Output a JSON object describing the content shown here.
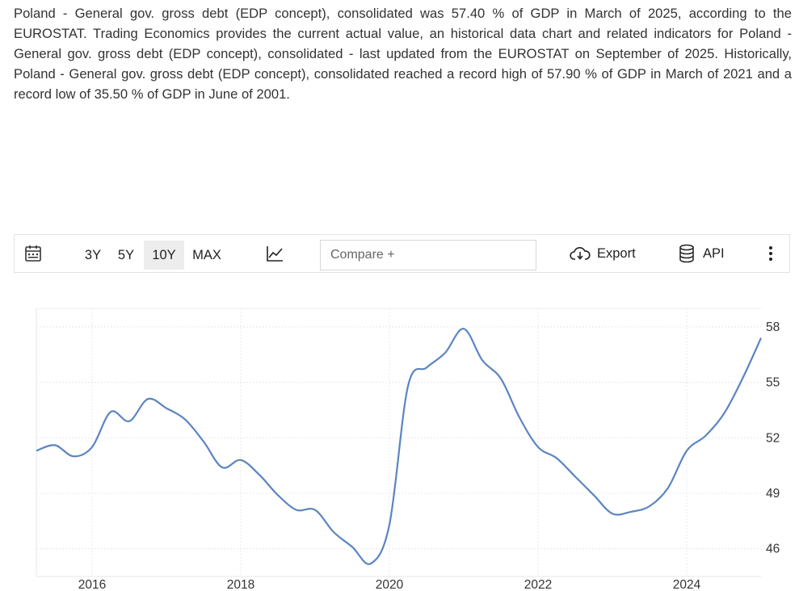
{
  "description": "Poland - General gov. gross debt (EDP concept), consolidated was 57.40 % of GDP in March of 2025, according to the EUROSTAT. Trading Economics provides the current actual value, an historical data chart and related indicators for Poland - General gov. gross debt (EDP concept), consolidated - last updated from the EUROSTAT on September of 2025. Historically, Poland - General gov. gross debt (EDP concept), consolidated reached a record high of 57.90 % of GDP in March of 2021 and a record low of 35.50 % of GDP in June of 2001.",
  "toolbar": {
    "calendar_icon": "calendar-icon",
    "ranges": [
      {
        "label": "3Y",
        "active": false
      },
      {
        "label": "5Y",
        "active": false
      },
      {
        "label": "10Y",
        "active": true
      },
      {
        "label": "MAX",
        "active": false
      }
    ],
    "chart_type_icon": "line-chart-icon",
    "compare_placeholder": "Compare +",
    "export_label": "Export",
    "export_icon": "cloud-download-icon",
    "api_label": "API",
    "api_icon": "database-icon",
    "more_icon": "vertical-dots-icon"
  },
  "colors": {
    "line": "#5b85c0",
    "grid": "#e6e6e6",
    "active_range_bg": "#ededed"
  },
  "chart_data": {
    "type": "line",
    "title": "",
    "xlabel": "",
    "ylabel": "",
    "xlim": [
      2015.25,
      2025.0
    ],
    "ylim": [
      44.5,
      59.0
    ],
    "x_ticks": [
      2016,
      2018,
      2020,
      2022,
      2024
    ],
    "x_tick_labels": [
      "2016",
      "2018",
      "2020",
      "2022",
      "2024"
    ],
    "y_ticks": [
      46,
      49,
      52,
      55,
      58
    ],
    "y_tick_labels": [
      "46",
      "49",
      "52",
      "55",
      "58"
    ],
    "y_axis_side": "right",
    "grid": true,
    "legend": "none",
    "series": [
      {
        "values": [
          {
            "x": 2015.25,
            "y": 51.3
          },
          {
            "x": 2015.5,
            "y": 51.6
          },
          {
            "x": 2015.75,
            "y": 51.0
          },
          {
            "x": 2016.0,
            "y": 51.5
          },
          {
            "x": 2016.25,
            "y": 53.4
          },
          {
            "x": 2016.5,
            "y": 52.9
          },
          {
            "x": 2016.75,
            "y": 54.1
          },
          {
            "x": 2017.0,
            "y": 53.6
          },
          {
            "x": 2017.25,
            "y": 53.0
          },
          {
            "x": 2017.5,
            "y": 51.8
          },
          {
            "x": 2017.75,
            "y": 50.4
          },
          {
            "x": 2018.0,
            "y": 50.8
          },
          {
            "x": 2018.25,
            "y": 50.0
          },
          {
            "x": 2018.5,
            "y": 48.9
          },
          {
            "x": 2018.75,
            "y": 48.1
          },
          {
            "x": 2019.0,
            "y": 48.1
          },
          {
            "x": 2019.25,
            "y": 46.9
          },
          {
            "x": 2019.5,
            "y": 46.1
          },
          {
            "x": 2019.75,
            "y": 45.2
          },
          {
            "x": 2020.0,
            "y": 47.3
          },
          {
            "x": 2020.25,
            "y": 54.8
          },
          {
            "x": 2020.5,
            "y": 55.8
          },
          {
            "x": 2020.75,
            "y": 56.6
          },
          {
            "x": 2021.0,
            "y": 57.9
          },
          {
            "x": 2021.25,
            "y": 56.2
          },
          {
            "x": 2021.5,
            "y": 55.2
          },
          {
            "x": 2021.75,
            "y": 53.1
          },
          {
            "x": 2022.0,
            "y": 51.5
          },
          {
            "x": 2022.25,
            "y": 50.9
          },
          {
            "x": 2022.5,
            "y": 49.9
          },
          {
            "x": 2022.75,
            "y": 48.9
          },
          {
            "x": 2023.0,
            "y": 47.9
          },
          {
            "x": 2023.25,
            "y": 48.0
          },
          {
            "x": 2023.5,
            "y": 48.3
          },
          {
            "x": 2023.75,
            "y": 49.3
          },
          {
            "x": 2024.0,
            "y": 51.3
          },
          {
            "x": 2024.25,
            "y": 52.1
          },
          {
            "x": 2024.5,
            "y": 53.3
          },
          {
            "x": 2024.75,
            "y": 55.2
          },
          {
            "x": 2025.0,
            "y": 57.4
          }
        ]
      }
    ]
  }
}
